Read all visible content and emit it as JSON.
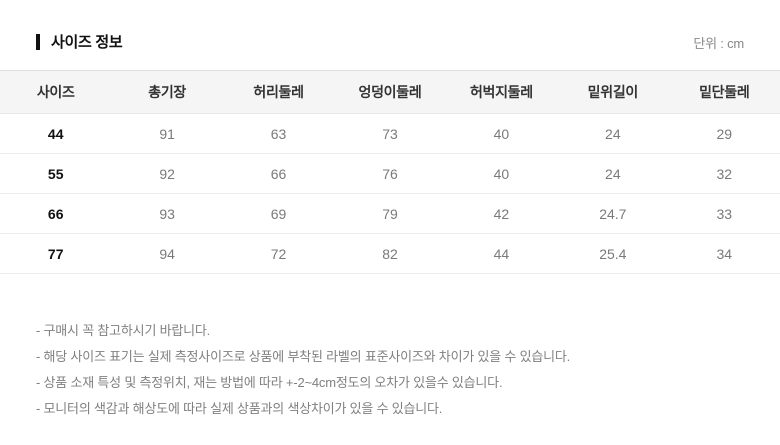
{
  "header": {
    "title": "사이즈 정보",
    "unit_label": "단위 : cm"
  },
  "table": {
    "headers": [
      "사이즈",
      "총기장",
      "허리둘레",
      "엉덩이둘레",
      "허벅지둘레",
      "밑위길이",
      "밑단둘레"
    ],
    "rows": [
      [
        "44",
        "91",
        "63",
        "73",
        "40",
        "24",
        "29"
      ],
      [
        "55",
        "92",
        "66",
        "76",
        "40",
        "24",
        "32"
      ],
      [
        "66",
        "93",
        "69",
        "79",
        "42",
        "24.7",
        "33"
      ],
      [
        "77",
        "94",
        "72",
        "82",
        "44",
        "25.4",
        "34"
      ]
    ]
  },
  "notes": [
    "- 구매시 꼭 참고하시기 바랍니다.",
    "- 해당 사이즈 표기는 실제 측정사이즈로 상품에 부착된 라벨의 표준사이즈와 차이가 있을 수 있습니다.",
    "- 상품 소재 특성 및 측정위치, 재는 방법에 따라 +-2~4cm정도의 오차가 있을수 있습니다.",
    "- 모니터의 색감과 해상도에 따라 실제 상품과의 색상차이가 있을 수 있습니다."
  ],
  "colors": {
    "title_text": "#111111",
    "header_row_bg": "#f5f5f6",
    "header_text": "#333333",
    "cell_text": "#7a7a7a",
    "note_text": "#808080",
    "row_divider": "#ededed"
  }
}
